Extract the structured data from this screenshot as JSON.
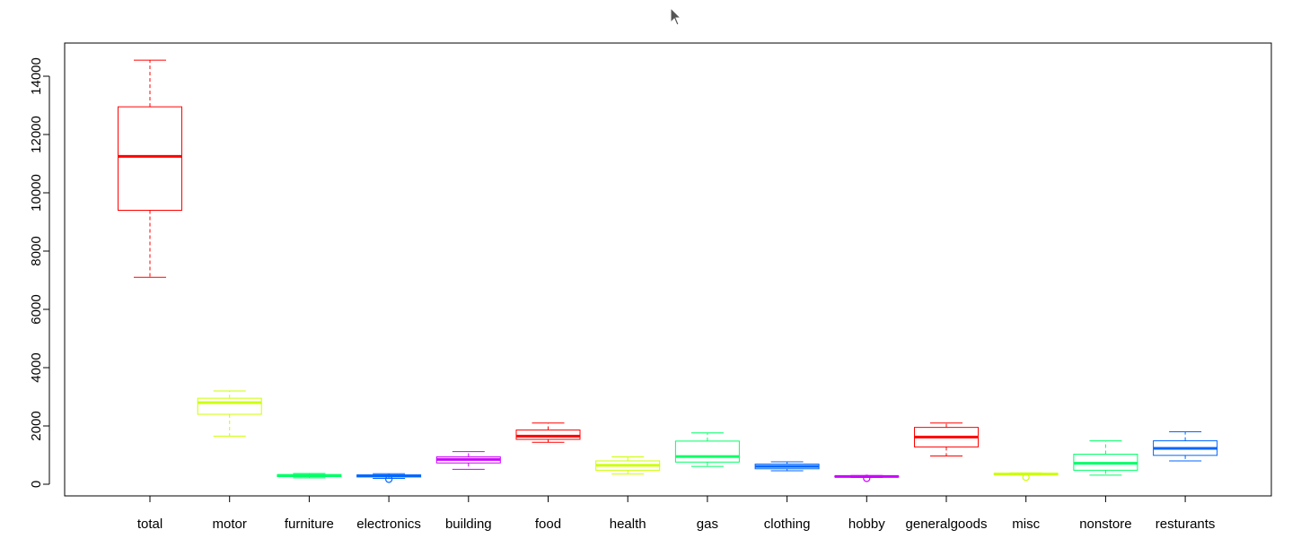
{
  "chart_data": {
    "type": "boxplot",
    "title": "",
    "xlabel": "",
    "ylabel": "",
    "ylim": [
      -400,
      15200
    ],
    "yticks": [
      0,
      2000,
      4000,
      6000,
      8000,
      10000,
      12000,
      14000
    ],
    "ytick_labels": [
      "0",
      "2000",
      "4000",
      "6000",
      "8000",
      "10000",
      "12000",
      "14000"
    ],
    "grid": false,
    "legend": "none",
    "categories": [
      "total",
      "motor",
      "furniture",
      "electronics",
      "building",
      "food",
      "health",
      "gas",
      "clothing",
      "hobby",
      "generalgoods",
      "misc",
      "nonstore",
      "resturants"
    ],
    "series": [
      {
        "label": "total",
        "color": "#ff0000",
        "whisker_low": 7100,
        "q1": 9400,
        "median": 11250,
        "q3": 12950,
        "whisker_high": 14550,
        "outliers": []
      },
      {
        "label": "motor",
        "color": "#ccff00",
        "whisker_low": 1650,
        "q1": 2400,
        "median": 2800,
        "q3": 2950,
        "whisker_high": 3200,
        "outliers": []
      },
      {
        "label": "furniture",
        "color": "#00ff66",
        "whisker_low": 220,
        "q1": 260,
        "median": 300,
        "q3": 330,
        "whisker_high": 370,
        "outliers": []
      },
      {
        "label": "electronics",
        "color": "#0066ff",
        "whisker_low": 200,
        "q1": 250,
        "median": 290,
        "q3": 320,
        "whisker_high": 360,
        "outliers": [
          170
        ]
      },
      {
        "label": "building",
        "color": "#cc00ff",
        "whisker_low": 510,
        "q1": 730,
        "median": 850,
        "q3": 940,
        "whisker_high": 1120,
        "outliers": []
      },
      {
        "label": "food",
        "color": "#ff0000",
        "whisker_low": 1440,
        "q1": 1540,
        "median": 1650,
        "q3": 1860,
        "whisker_high": 2100,
        "outliers": []
      },
      {
        "label": "health",
        "color": "#ccff00",
        "whisker_low": 350,
        "q1": 480,
        "median": 650,
        "q3": 800,
        "whisker_high": 940,
        "outliers": []
      },
      {
        "label": "gas",
        "color": "#00ff66",
        "whisker_low": 610,
        "q1": 760,
        "median": 950,
        "q3": 1480,
        "whisker_high": 1760,
        "outliers": []
      },
      {
        "label": "clothing",
        "color": "#0066ff",
        "whisker_low": 460,
        "q1": 530,
        "median": 610,
        "q3": 690,
        "whisker_high": 770,
        "outliers": []
      },
      {
        "label": "hobby",
        "color": "#cc00ff",
        "whisker_low": 230,
        "q1": 250,
        "median": 265,
        "q3": 280,
        "whisker_high": 300,
        "outliers": [
          200
        ]
      },
      {
        "label": "generalgoods",
        "color": "#ff0000",
        "whisker_low": 970,
        "q1": 1280,
        "median": 1620,
        "q3": 1950,
        "whisker_high": 2100,
        "outliers": []
      },
      {
        "label": "misc",
        "color": "#ccff00",
        "whisker_low": 320,
        "q1": 335,
        "median": 350,
        "q3": 370,
        "whisker_high": 390,
        "outliers": [
          240
        ]
      },
      {
        "label": "nonstore",
        "color": "#00ff66",
        "whisker_low": 310,
        "q1": 480,
        "median": 720,
        "q3": 1030,
        "whisker_high": 1490,
        "outliers": []
      },
      {
        "label": "resturants",
        "color": "#0066ff",
        "whisker_low": 800,
        "q1": 990,
        "median": 1230,
        "q3": 1490,
        "whisker_high": 1800,
        "outliers": []
      }
    ]
  }
}
